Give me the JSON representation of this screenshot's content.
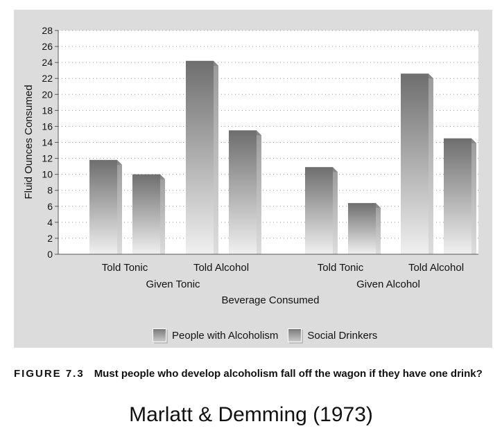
{
  "chart_data": {
    "type": "bar",
    "ylabel": "Fluid Ounces Consumed",
    "xlabel": "Beverage Consumed",
    "ylim": [
      0,
      28
    ],
    "yticks": [
      "0",
      "2",
      "4",
      "6",
      "8",
      "10",
      "12",
      "14",
      "16",
      "18",
      "20",
      "22",
      "24",
      "26",
      "28"
    ],
    "groups": [
      {
        "label": "Given Tonic",
        "categories": [
          "Told Tonic",
          "Told Alcohol"
        ]
      },
      {
        "label": "Given Alcohol",
        "categories": [
          "Told Tonic",
          "Told Alcohol"
        ]
      }
    ],
    "series": [
      {
        "name": "People with Alcoholism",
        "values": [
          11.8,
          24.2,
          10.9,
          22.6
        ]
      },
      {
        "name": "Social Drinkers",
        "values": [
          10.0,
          15.5,
          6.4,
          14.5
        ]
      }
    ],
    "grid": true,
    "legend": "bottom-center"
  },
  "caption": {
    "label": "FIGURE 7.3",
    "text": "Must people who develop alcoholism fall off the wagon if they have one drink?"
  },
  "citation": "Marlatt & Demming (1973)",
  "colors": {
    "panel": "#dcdcdc",
    "plot_background": "#ffffff",
    "bar_dark": "#6e6e6e",
    "bar_light": "#f0f0f0"
  }
}
